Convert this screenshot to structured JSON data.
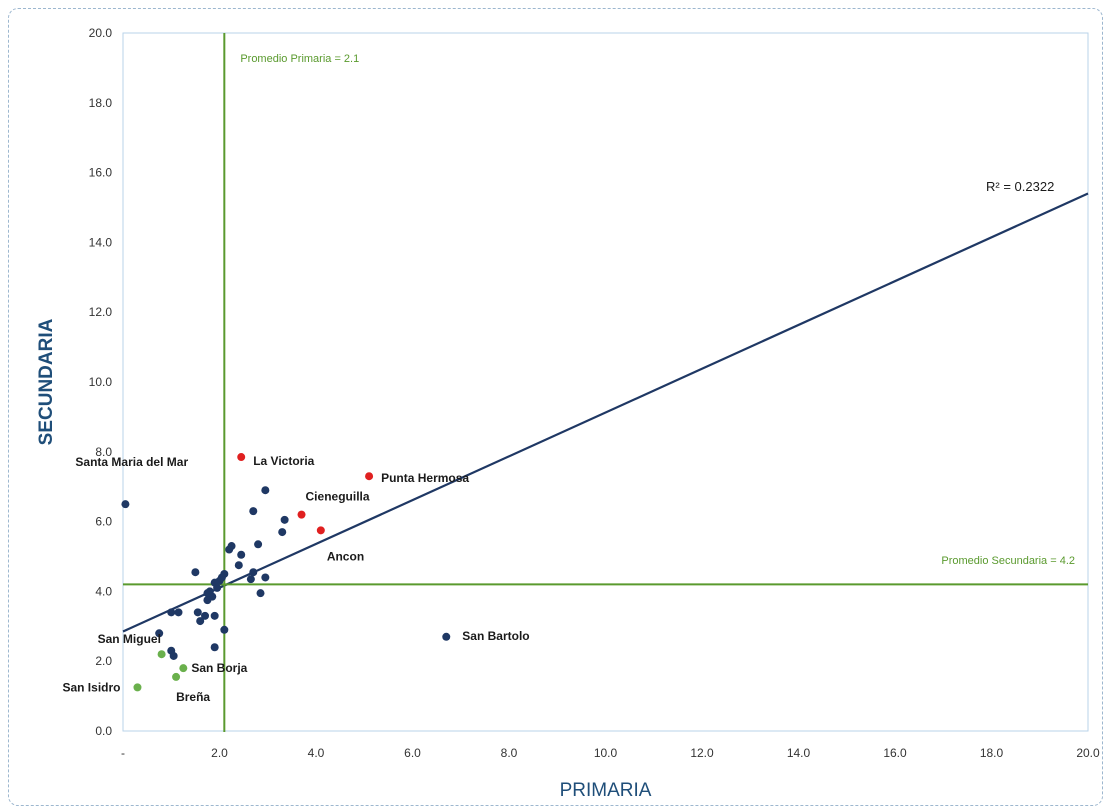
{
  "chart_data": {
    "type": "scatter",
    "xlabel": "PRIMARIA",
    "ylabel": "SECUNDARIA",
    "xlim": [
      0,
      20
    ],
    "ylim": [
      0,
      20
    ],
    "x_ticks": [
      {
        "value": 0,
        "label": "-"
      },
      {
        "value": 2,
        "label": "2.0"
      },
      {
        "value": 4,
        "label": "4.0"
      },
      {
        "value": 6,
        "label": "6.0"
      },
      {
        "value": 8,
        "label": "8.0"
      },
      {
        "value": 10,
        "label": "10.0"
      },
      {
        "value": 12,
        "label": "12.0"
      },
      {
        "value": 14,
        "label": "14.0"
      },
      {
        "value": 16,
        "label": "16.0"
      },
      {
        "value": 18,
        "label": "18.0"
      },
      {
        "value": 20,
        "label": "20.0"
      }
    ],
    "y_ticks": [
      {
        "value": 0,
        "label": "0.0"
      },
      {
        "value": 2,
        "label": "2.0"
      },
      {
        "value": 4,
        "label": "4.0"
      },
      {
        "value": 6,
        "label": "6.0"
      },
      {
        "value": 8,
        "label": "8.0"
      },
      {
        "value": 10,
        "label": "10.0"
      },
      {
        "value": 12,
        "label": "12.0"
      },
      {
        "value": 14,
        "label": "14.0"
      },
      {
        "value": 16,
        "label": "16.0"
      },
      {
        "value": 18,
        "label": "18.0"
      },
      {
        "value": 20,
        "label": "20.0"
      }
    ],
    "colors": {
      "navy": "#1f3864",
      "red": "#e02020",
      "green": "#6ab04c",
      "ref_line": "#5a9a2e",
      "trend": "#1f3864",
      "frame": "#b9d3ea"
    },
    "reference_lines": {
      "vertical": {
        "value": 2.1,
        "label": "Promedio Primaria = 2.1"
      },
      "horizontal": {
        "value": 4.2,
        "label": "Promedio Secundaria = 4.2"
      }
    },
    "trendline": {
      "y_at_x0": 2.85,
      "y_at_x20": 15.4,
      "label": "R² = 0.2322"
    },
    "points": [
      {
        "x": 0.05,
        "y": 6.5,
        "color": "navy",
        "label": "Santa Maria del Mar"
      },
      {
        "x": 2.45,
        "y": 7.85,
        "color": "red",
        "label": "La Victoria"
      },
      {
        "x": 5.1,
        "y": 7.3,
        "color": "red",
        "label": "Punta Hermosa"
      },
      {
        "x": 3.7,
        "y": 6.2,
        "color": "red",
        "label": "Cieneguilla"
      },
      {
        "x": 4.1,
        "y": 5.75,
        "color": "red",
        "label": "Ancon"
      },
      {
        "x": 6.7,
        "y": 2.7,
        "color": "navy",
        "label": "San Bartolo"
      },
      {
        "x": 0.8,
        "y": 2.2,
        "color": "green",
        "label": "San Miguel"
      },
      {
        "x": 1.25,
        "y": 1.8,
        "color": "green",
        "label": "San Borja"
      },
      {
        "x": 0.3,
        "y": 1.25,
        "color": "green",
        "label": "San Isidro"
      },
      {
        "x": 1.1,
        "y": 1.55,
        "color": "green",
        "label": "Breña"
      },
      {
        "x": 2.95,
        "y": 6.9,
        "color": "navy",
        "label": ""
      },
      {
        "x": 2.7,
        "y": 6.3,
        "color": "navy",
        "label": ""
      },
      {
        "x": 3.35,
        "y": 6.05,
        "color": "navy",
        "label": ""
      },
      {
        "x": 3.3,
        "y": 5.7,
        "color": "navy",
        "label": ""
      },
      {
        "x": 2.8,
        "y": 5.35,
        "color": "navy",
        "label": ""
      },
      {
        "x": 2.25,
        "y": 5.3,
        "color": "navy",
        "label": ""
      },
      {
        "x": 2.2,
        "y": 5.2,
        "color": "navy",
        "label": ""
      },
      {
        "x": 2.45,
        "y": 5.05,
        "color": "navy",
        "label": ""
      },
      {
        "x": 2.4,
        "y": 4.75,
        "color": "navy",
        "label": ""
      },
      {
        "x": 1.5,
        "y": 4.55,
        "color": "navy",
        "label": ""
      },
      {
        "x": 2.7,
        "y": 4.55,
        "color": "navy",
        "label": ""
      },
      {
        "x": 2.1,
        "y": 4.5,
        "color": "navy",
        "label": ""
      },
      {
        "x": 2.05,
        "y": 4.4,
        "color": "navy",
        "label": ""
      },
      {
        "x": 2.95,
        "y": 4.4,
        "color": "navy",
        "label": ""
      },
      {
        "x": 2.65,
        "y": 4.35,
        "color": "navy",
        "label": ""
      },
      {
        "x": 2.0,
        "y": 4.3,
        "color": "navy",
        "label": ""
      },
      {
        "x": 1.9,
        "y": 4.25,
        "color": "navy",
        "label": ""
      },
      {
        "x": 1.95,
        "y": 4.1,
        "color": "navy",
        "label": ""
      },
      {
        "x": 1.8,
        "y": 4.0,
        "color": "navy",
        "label": ""
      },
      {
        "x": 1.75,
        "y": 3.95,
        "color": "navy",
        "label": ""
      },
      {
        "x": 2.85,
        "y": 3.95,
        "color": "navy",
        "label": ""
      },
      {
        "x": 1.85,
        "y": 3.85,
        "color": "navy",
        "label": ""
      },
      {
        "x": 1.75,
        "y": 3.75,
        "color": "navy",
        "label": ""
      },
      {
        "x": 1.0,
        "y": 3.4,
        "color": "navy",
        "label": ""
      },
      {
        "x": 1.15,
        "y": 3.4,
        "color": "navy",
        "label": ""
      },
      {
        "x": 1.55,
        "y": 3.4,
        "color": "navy",
        "label": ""
      },
      {
        "x": 1.7,
        "y": 3.3,
        "color": "navy",
        "label": ""
      },
      {
        "x": 1.9,
        "y": 3.3,
        "color": "navy",
        "label": ""
      },
      {
        "x": 1.6,
        "y": 3.15,
        "color": "navy",
        "label": ""
      },
      {
        "x": 2.1,
        "y": 2.9,
        "color": "navy",
        "label": ""
      },
      {
        "x": 0.75,
        "y": 2.8,
        "color": "navy",
        "label": ""
      },
      {
        "x": 1.0,
        "y": 2.3,
        "color": "navy",
        "label": ""
      },
      {
        "x": 1.05,
        "y": 2.15,
        "color": "navy",
        "label": ""
      },
      {
        "x": 1.9,
        "y": 2.4,
        "color": "navy",
        "label": ""
      }
    ]
  }
}
